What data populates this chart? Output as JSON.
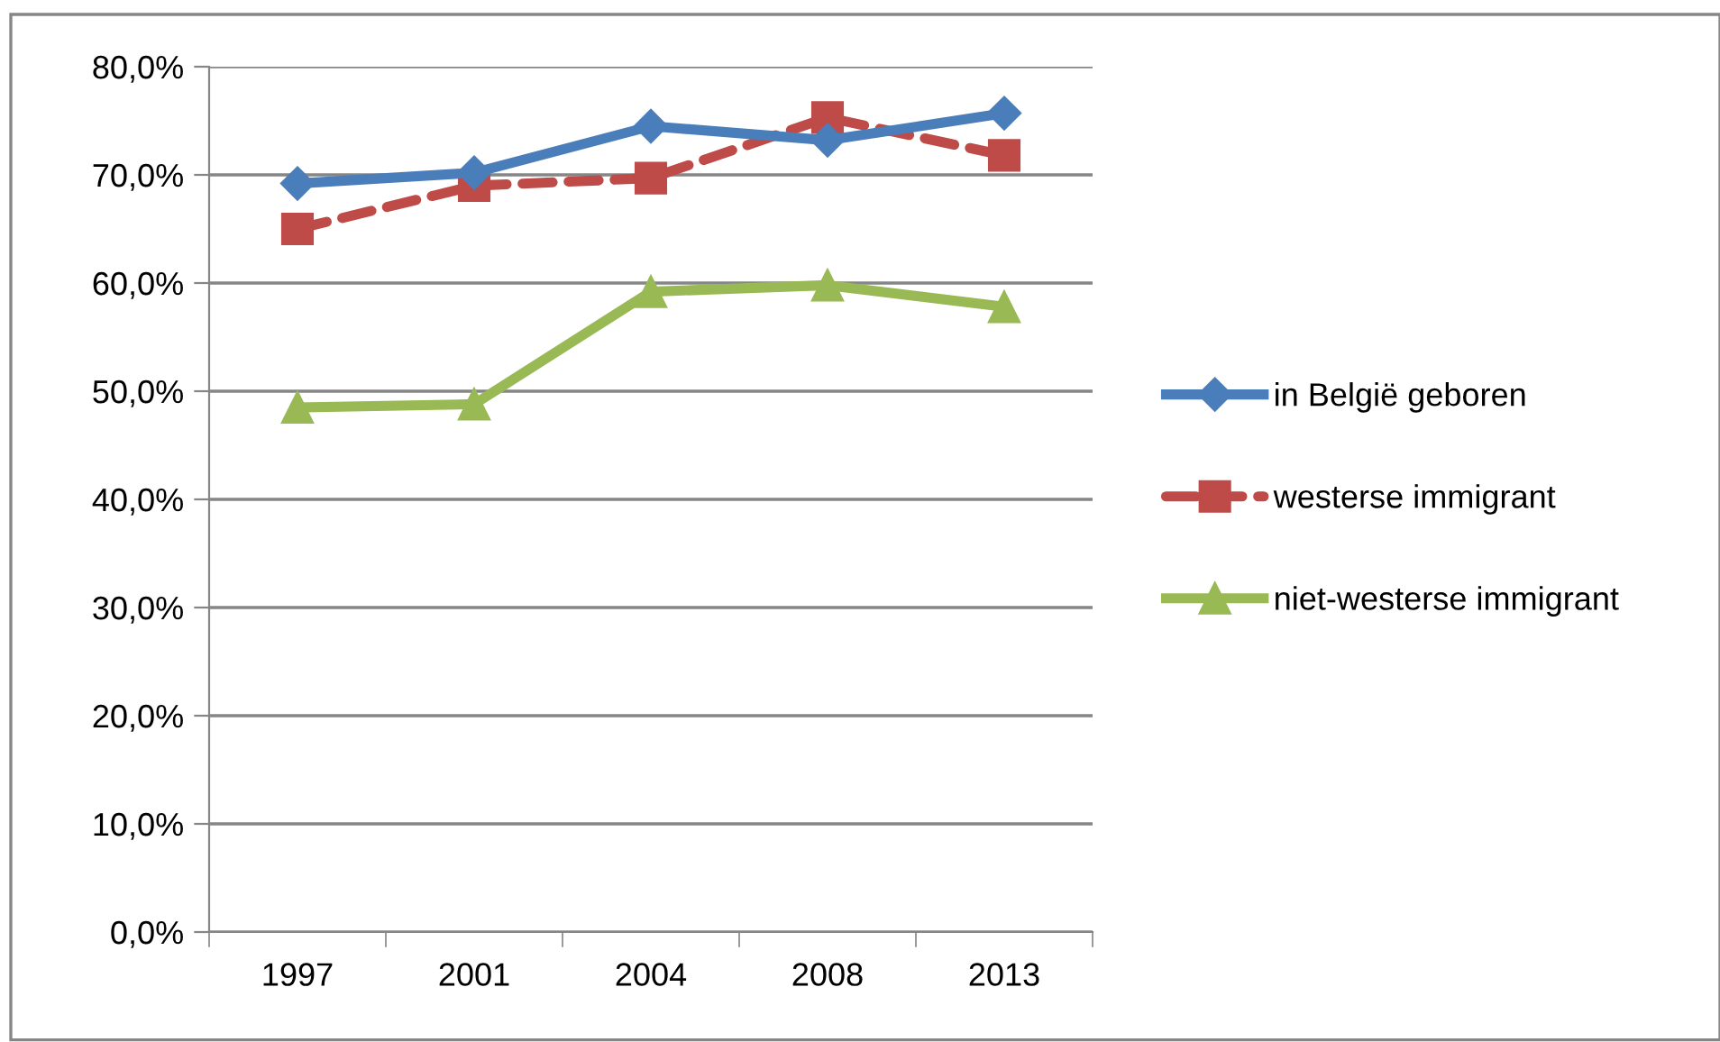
{
  "chart_data": {
    "type": "line",
    "categories": [
      "1997",
      "2001",
      "2004",
      "2008",
      "2013"
    ],
    "series": [
      {
        "name": "in België geboren",
        "color": "#4a7ebb",
        "marker": "diamond",
        "line_style": "solid",
        "values": [
          69.2,
          70.2,
          74.5,
          73.2,
          75.7
        ]
      },
      {
        "name": "westerse immigrant",
        "color": "#be4b48",
        "marker": "square",
        "line_style": "dashed",
        "values": [
          65.0,
          69.0,
          69.7,
          75.3,
          71.8
        ]
      },
      {
        "name": "niet-westerse immigrant",
        "color": "#98b954",
        "marker": "triangle",
        "line_style": "solid",
        "values": [
          48.5,
          48.8,
          59.2,
          59.8,
          57.8
        ]
      }
    ],
    "ylim": [
      0,
      80
    ],
    "yticks": [
      {
        "value": 0,
        "label": "0,0%"
      },
      {
        "value": 10,
        "label": "10,0%"
      },
      {
        "value": 20,
        "label": "20,0%"
      },
      {
        "value": 30,
        "label": "30,0%"
      },
      {
        "value": 40,
        "label": "40,0%"
      },
      {
        "value": 50,
        "label": "50,0%"
      },
      {
        "value": 60,
        "label": "60,0%"
      },
      {
        "value": 70,
        "label": "70,0%"
      },
      {
        "value": 80,
        "label": "80,0%"
      }
    ],
    "grid": "y",
    "legend": "right"
  }
}
